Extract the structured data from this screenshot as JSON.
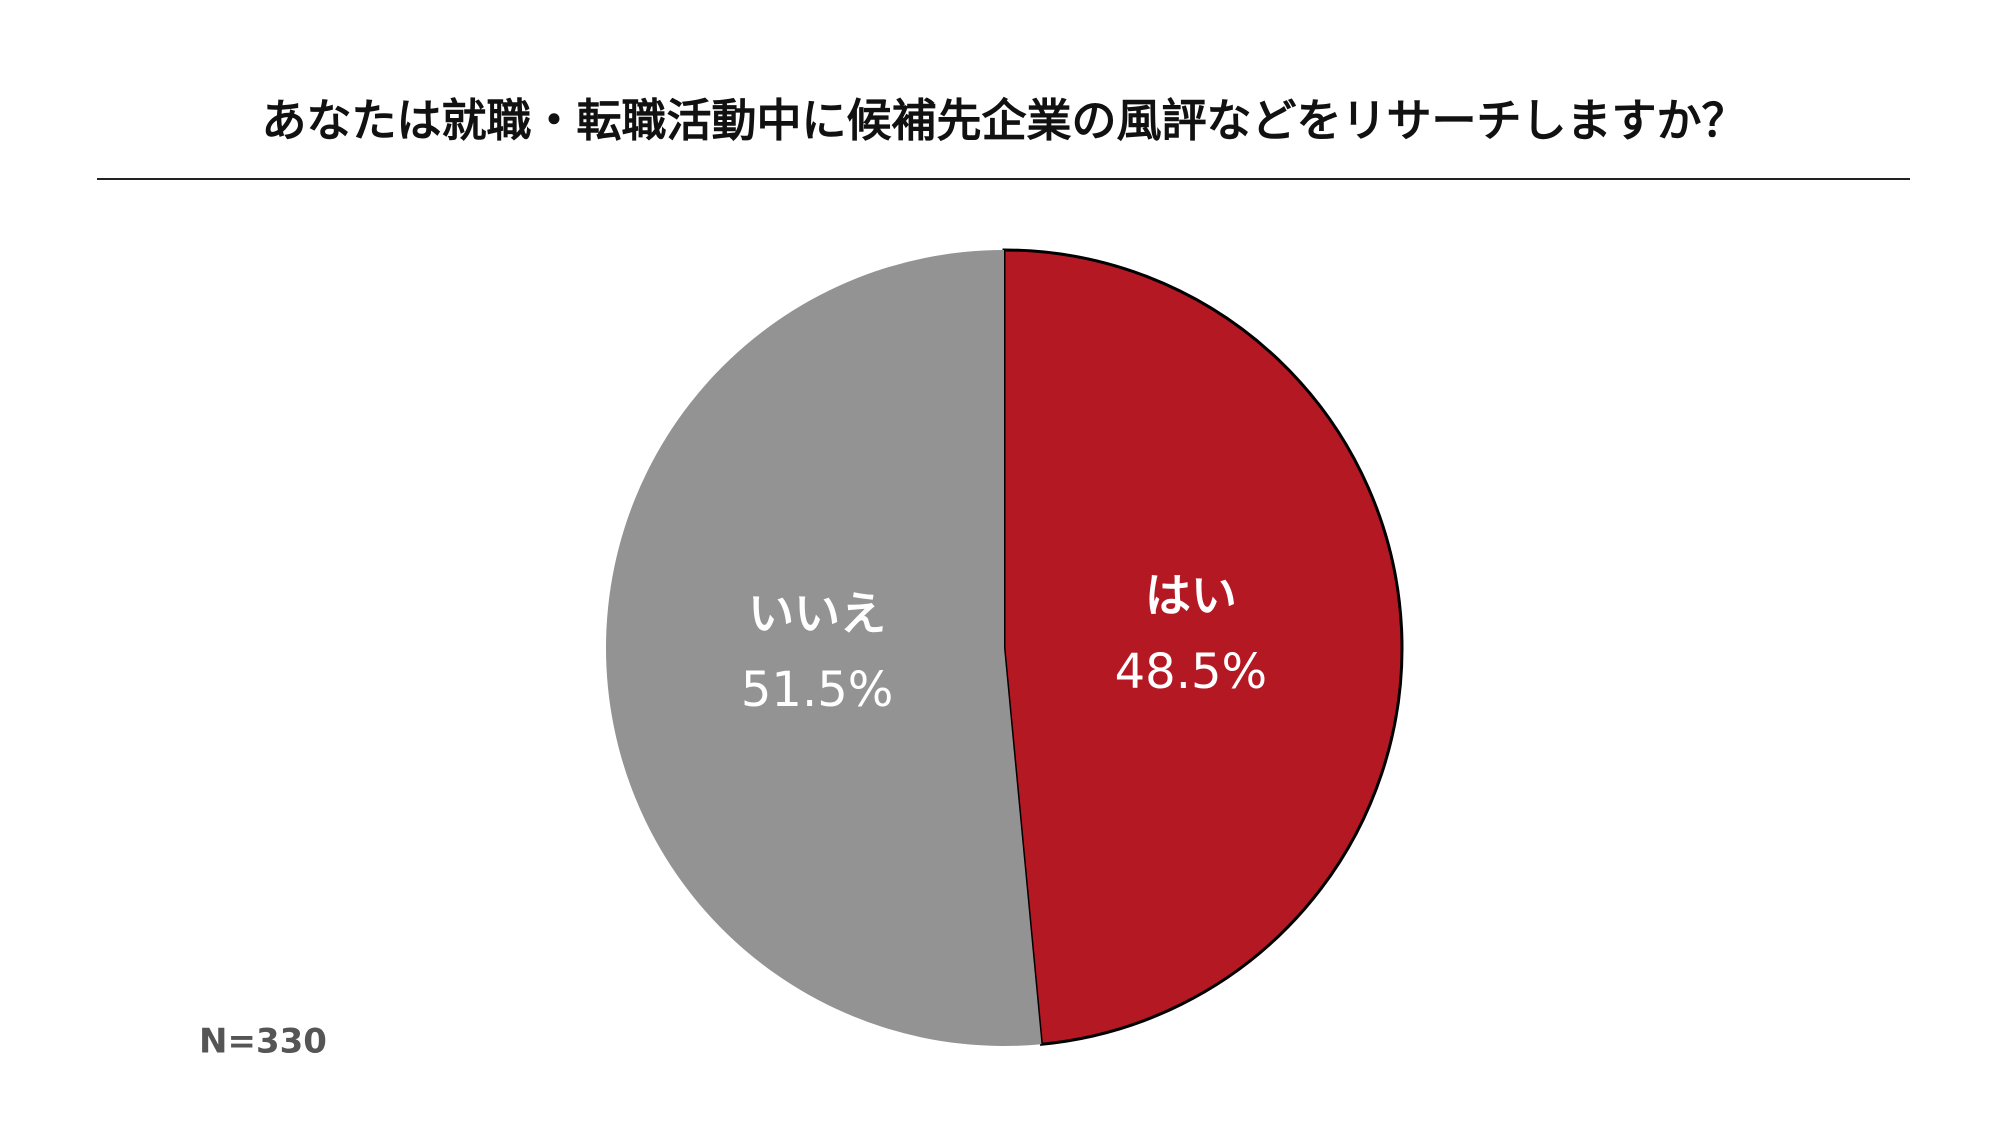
{
  "chart_data": {
    "type": "pie",
    "title": "あなたは就職・転職活動中に候補先企業の風評などをリサーチしますか？",
    "categories": [
      "はい",
      "いいえ"
    ],
    "values": [
      48.5,
      51.5
    ],
    "value_labels": [
      "48.5%",
      "51.5%"
    ],
    "colors": [
      "#b41823",
      "#939393"
    ],
    "note": "N=330"
  }
}
